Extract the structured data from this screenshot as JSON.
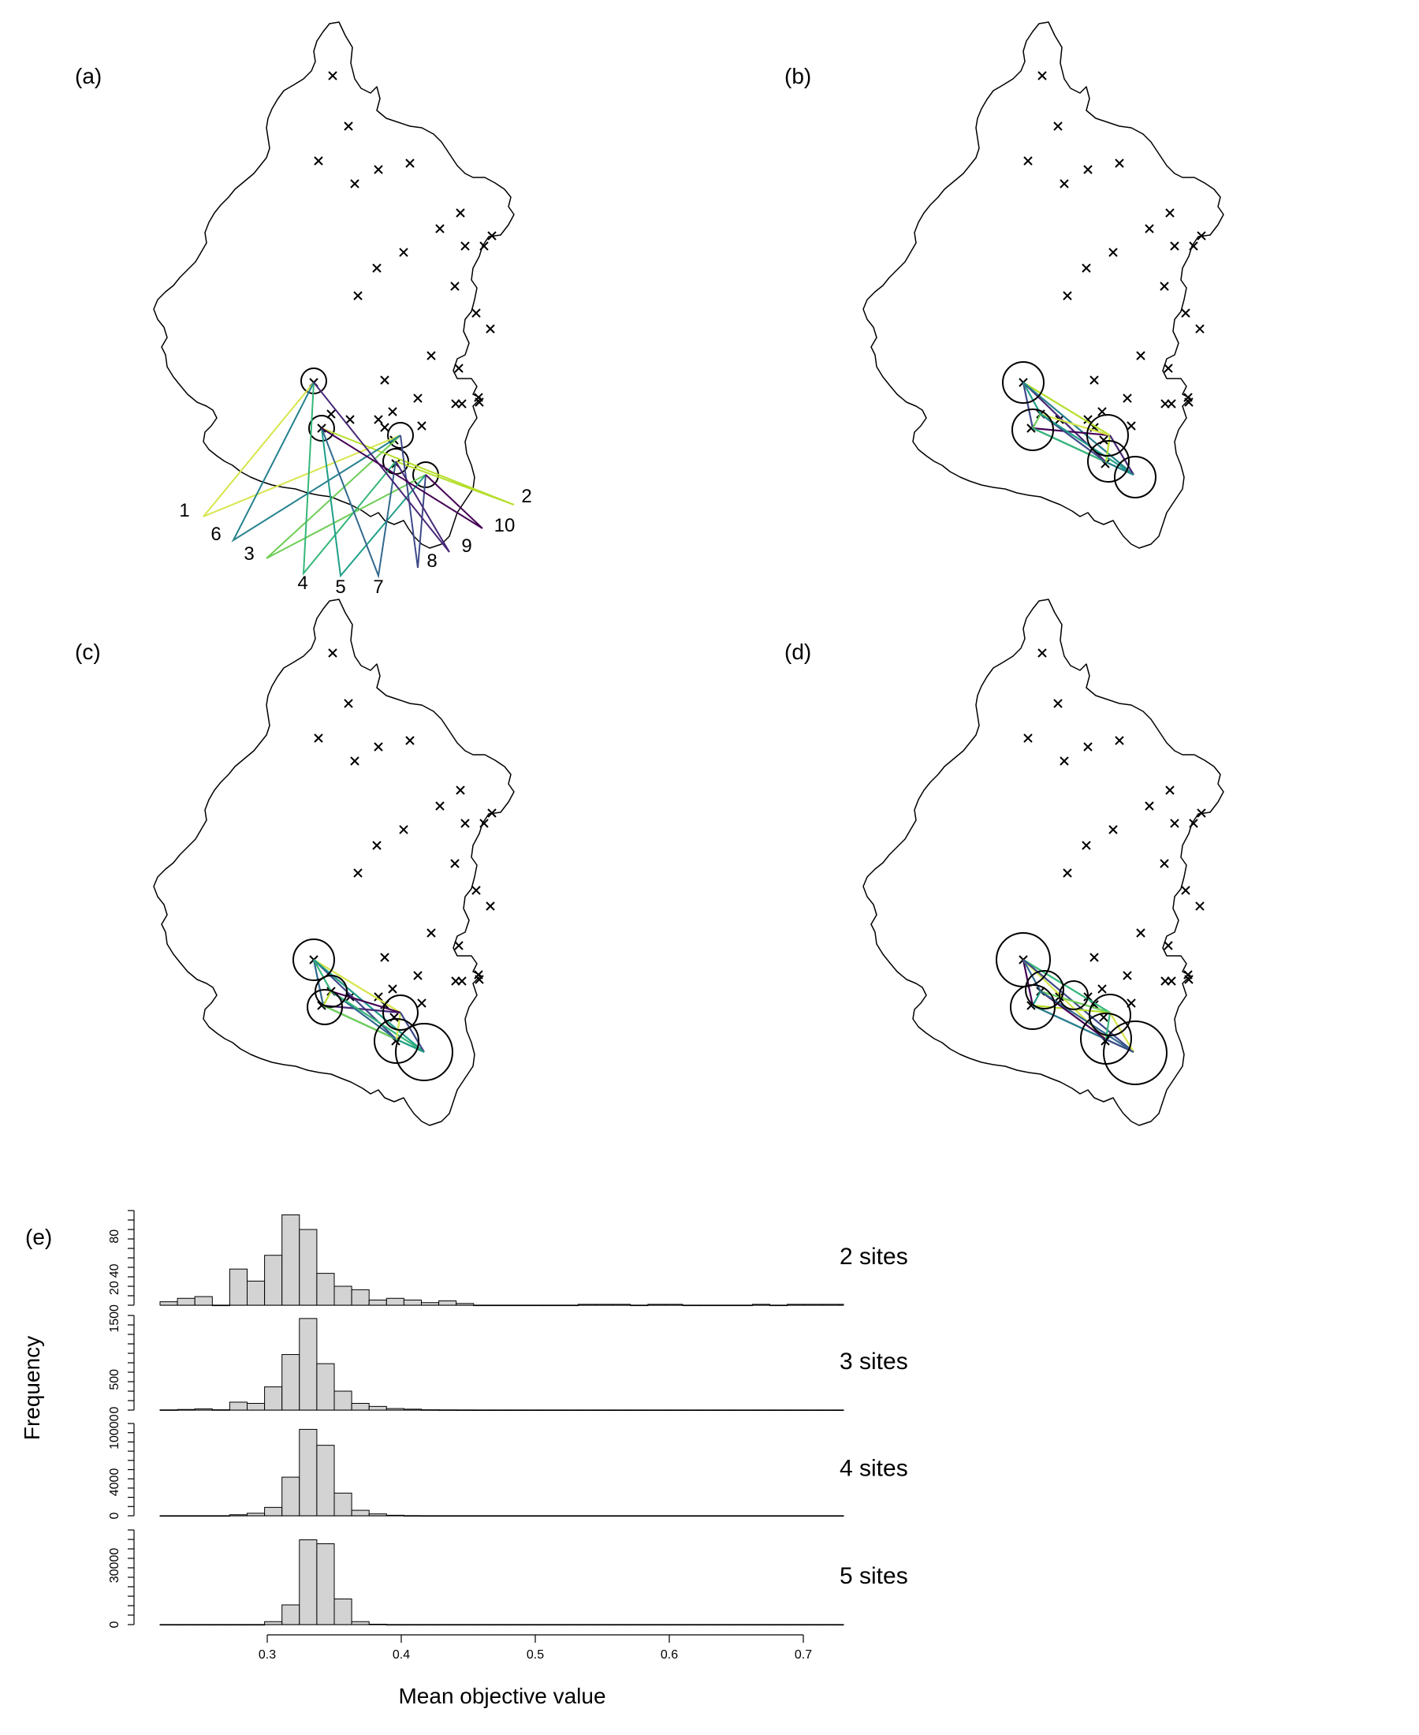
{
  "figure": {
    "panel_labels": [
      "(a)",
      "(b)",
      "(c)",
      "(d)",
      "(e)"
    ],
    "route_labels": [
      "1",
      "2",
      "3",
      "4",
      "5",
      "6",
      "7",
      "8",
      "9",
      "10"
    ]
  },
  "chart_data": {
    "type": "bar",
    "title": "",
    "xlabel": "Mean objective value",
    "ylabel": "Frequency",
    "bin_width": 0.013,
    "bins_start": 0.22,
    "x_range": [
      0.22,
      0.73
    ],
    "x_ticks": [
      "0.3",
      "0.4",
      "0.5",
      "0.6",
      "0.7"
    ],
    "series": [
      {
        "name": "2 sites",
        "ylim": [
          0,
          110
        ],
        "y_ticks": [
          "20",
          "40",
          "80"
        ],
        "values": [
          4,
          8,
          10,
          0,
          42,
          28,
          58,
          105,
          88,
          37,
          22,
          18,
          6,
          8,
          6,
          3,
          5,
          2,
          0,
          0,
          0,
          0,
          0,
          0,
          1,
          1,
          1,
          0,
          1,
          1,
          0,
          0,
          0,
          0,
          1,
          0,
          1,
          1,
          1,
          1,
          0,
          1,
          1,
          0,
          1,
          0,
          0,
          0,
          1
        ]
      },
      {
        "name": "3 sites",
        "ylim": [
          0,
          1550
        ],
        "y_ticks": [
          "0",
          "500",
          "1500"
        ],
        "values": [
          3,
          10,
          20,
          5,
          130,
          110,
          380,
          910,
          1500,
          760,
          310,
          110,
          60,
          25,
          15,
          5,
          3,
          2,
          1,
          1,
          1,
          1,
          1,
          1,
          1,
          1,
          1,
          1,
          1,
          1,
          1,
          1,
          1,
          1,
          1,
          1,
          1,
          1,
          1,
          1,
          1,
          1,
          1,
          1,
          1,
          1,
          1,
          1,
          1
        ]
      },
      {
        "name": "4 sites",
        "ylim": [
          0,
          11000
        ],
        "y_ticks": [
          "0",
          "4000",
          "10000"
        ],
        "values": [
          0,
          0,
          0,
          0,
          120,
          300,
          1000,
          4600,
          10300,
          8400,
          2700,
          650,
          220,
          60,
          10,
          0,
          0,
          0,
          0,
          0,
          0,
          0,
          0,
          0,
          0,
          0,
          0,
          0,
          0,
          0,
          0,
          0,
          0,
          0,
          0,
          0,
          0,
          0,
          0,
          0,
          0,
          0,
          0,
          0,
          0,
          0,
          0,
          0,
          0
        ]
      },
      {
        "name": "5 sites",
        "ylim": [
          0,
          48000
        ],
        "y_ticks": [
          "0",
          "30000"
        ],
        "values": [
          0,
          0,
          0,
          0,
          0,
          0,
          1500,
          10000,
          43000,
          41000,
          13000,
          1500,
          200,
          0,
          0,
          0,
          0,
          0,
          0,
          0,
          0,
          0,
          0,
          0,
          0,
          0,
          0,
          0,
          0,
          0,
          0,
          0,
          0,
          0,
          0,
          0,
          0,
          0,
          0,
          0,
          0,
          0,
          0,
          0,
          0,
          0,
          0,
          0,
          0
        ]
      }
    ],
    "colors": {
      "bar_fill": "#d3d3d3",
      "route_palette": [
        "#440154",
        "#482878",
        "#3e4a89",
        "#31688e",
        "#26828e",
        "#1f9e89",
        "#35b779",
        "#6ece58",
        "#b5de2b",
        "#d6e54a"
      ]
    }
  }
}
